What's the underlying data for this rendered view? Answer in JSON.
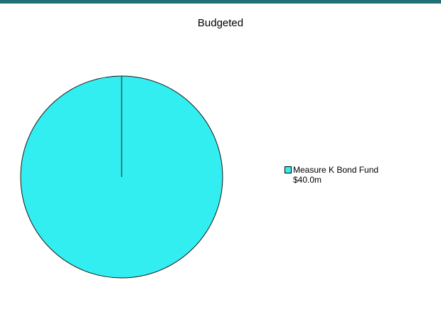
{
  "chart_data": {
    "type": "pie",
    "title": "Budgeted",
    "categories": [
      "Measure K Bond Fund"
    ],
    "values": [
      40.0
    ],
    "value_labels": [
      "$40.0m"
    ],
    "colors": [
      "#33eef0"
    ],
    "legend_position": "right"
  }
}
